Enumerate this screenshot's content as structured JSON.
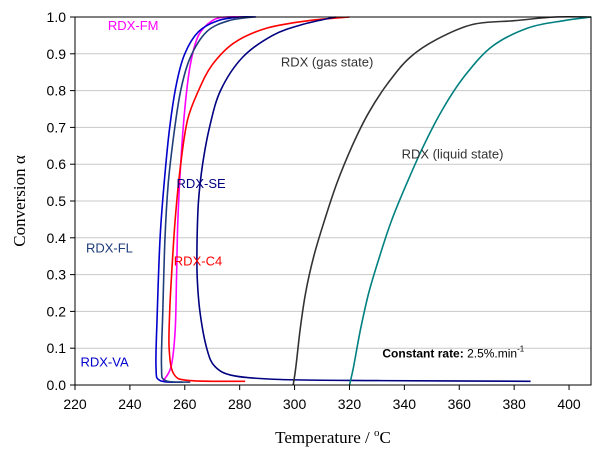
{
  "chart_data": {
    "type": "line",
    "xlabel": "Temperature / °C",
    "ylabel": "Conversion α",
    "xlim": [
      220,
      408
    ],
    "ylim": [
      0,
      1.0
    ],
    "x_ticks": [
      "220",
      "240",
      "260",
      "280",
      "300",
      "320",
      "340",
      "360",
      "380",
      "400"
    ],
    "y_ticks": [
      "0.0",
      "0.1",
      "0.2",
      "0.3",
      "0.4",
      "0.5",
      "0.6",
      "0.7",
      "0.8",
      "0.9",
      "1.0"
    ],
    "annotation": {
      "bold": "Constant rate:",
      "text": " 2.5%.min",
      "superscript": "-1"
    },
    "series": [
      {
        "name": "RDX-FM",
        "color": "#ff00ff",
        "points": [
          [
            252,
            0.01
          ],
          [
            255,
            0.05
          ],
          [
            256.5,
            0.15
          ],
          [
            257,
            0.3
          ],
          [
            257.5,
            0.45
          ],
          [
            258.5,
            0.6
          ],
          [
            260,
            0.75
          ],
          [
            262,
            0.87
          ],
          [
            265,
            0.95
          ],
          [
            270,
            0.99
          ],
          [
            275,
            1.0
          ],
          [
            282,
            1.0
          ]
        ]
      },
      {
        "name": "RDX-VA",
        "color": "#0000cc",
        "points": [
          [
            259,
            0.008
          ],
          [
            251,
            0.012
          ],
          [
            249.5,
            0.05
          ],
          [
            250,
            0.2
          ],
          [
            251,
            0.4
          ],
          [
            252.5,
            0.55
          ],
          [
            254.5,
            0.7
          ],
          [
            257,
            0.82
          ],
          [
            260,
            0.9
          ],
          [
            265,
            0.96
          ],
          [
            272,
            0.99
          ],
          [
            280,
            1.0
          ],
          [
            286,
            1.0
          ]
        ]
      },
      {
        "name": "RDX-FL",
        "color": "#1f3d7a",
        "points": [
          [
            262,
            0.008
          ],
          [
            253,
            0.012
          ],
          [
            251.5,
            0.05
          ],
          [
            252,
            0.2
          ],
          [
            252.8,
            0.4
          ],
          [
            254,
            0.55
          ],
          [
            256,
            0.68
          ],
          [
            258.5,
            0.8
          ],
          [
            262,
            0.89
          ],
          [
            268,
            0.96
          ],
          [
            276,
            0.99
          ],
          [
            285,
            1.0
          ]
        ]
      },
      {
        "name": "RDX-C4",
        "color": "#ff0000",
        "points": [
          [
            282,
            0.01
          ],
          [
            262,
            0.012
          ],
          [
            256,
            0.03
          ],
          [
            254.3,
            0.1
          ],
          [
            254.5,
            0.2
          ],
          [
            255.2,
            0.3
          ],
          [
            256.5,
            0.45
          ],
          [
            258.5,
            0.6
          ],
          [
            261,
            0.72
          ],
          [
            265,
            0.8
          ],
          [
            270,
            0.87
          ],
          [
            278,
            0.93
          ],
          [
            290,
            0.97
          ],
          [
            305,
            0.99
          ],
          [
            320,
            1.0
          ]
        ]
      },
      {
        "name": "RDX-SE",
        "color": "#000080",
        "points": [
          [
            386,
            0.01
          ],
          [
            330,
            0.012
          ],
          [
            295,
            0.015
          ],
          [
            278,
            0.025
          ],
          [
            271,
            0.05
          ],
          [
            268,
            0.1
          ],
          [
            265.5,
            0.2
          ],
          [
            264.5,
            0.3
          ],
          [
            264.5,
            0.4
          ],
          [
            265,
            0.5
          ],
          [
            266.5,
            0.6
          ],
          [
            269,
            0.7
          ],
          [
            273,
            0.8
          ],
          [
            281,
            0.89
          ],
          [
            292,
            0.95
          ],
          [
            303,
            0.98
          ],
          [
            315,
            1.0
          ]
        ]
      },
      {
        "name": "RDX (gas state)",
        "color": "#333333",
        "points": [
          [
            299.5,
            0.0
          ],
          [
            300.5,
            0.05
          ],
          [
            302,
            0.15
          ],
          [
            304,
            0.25
          ],
          [
            307,
            0.35
          ],
          [
            311,
            0.45
          ],
          [
            315.5,
            0.55
          ],
          [
            321,
            0.65
          ],
          [
            327,
            0.74
          ],
          [
            334,
            0.82
          ],
          [
            342,
            0.89
          ],
          [
            352,
            0.94
          ],
          [
            365,
            0.98
          ],
          [
            380,
            0.99
          ],
          [
            395,
            1.0
          ],
          [
            408,
            1.0
          ]
        ]
      },
      {
        "name": "RDX (liquid state)",
        "color": "#008080",
        "points": [
          [
            320,
            0.0
          ],
          [
            321.5,
            0.05
          ],
          [
            324,
            0.15
          ],
          [
            327,
            0.25
          ],
          [
            331,
            0.35
          ],
          [
            335.5,
            0.45
          ],
          [
            341,
            0.55
          ],
          [
            347,
            0.65
          ],
          [
            354,
            0.75
          ],
          [
            362,
            0.84
          ],
          [
            372,
            0.92
          ],
          [
            385,
            0.97
          ],
          [
            398,
            0.99
          ],
          [
            408,
            1.0
          ]
        ]
      }
    ],
    "labels": [
      {
        "text": "RDX-FM",
        "color": "#ff00ff",
        "x": 232,
        "y": 0.965
      },
      {
        "text": "RDX (gas state)",
        "color": "#333333",
        "x": 295,
        "y": 0.865
      },
      {
        "text": "RDX (liquid state)",
        "color": "#333333",
        "x": 339,
        "y": 0.615
      },
      {
        "text": "RDX-SE",
        "color": "#000080",
        "x": 257,
        "y": 0.535
      },
      {
        "text": "RDX-FL",
        "color": "#1f3d7a",
        "x": 224,
        "y": 0.36
      },
      {
        "text": "RDX-C4",
        "color": "#ff0000",
        "x": 256,
        "y": 0.325
      },
      {
        "text": "RDX-VA",
        "color": "#0000cc",
        "x": 222,
        "y": 0.05
      }
    ]
  }
}
